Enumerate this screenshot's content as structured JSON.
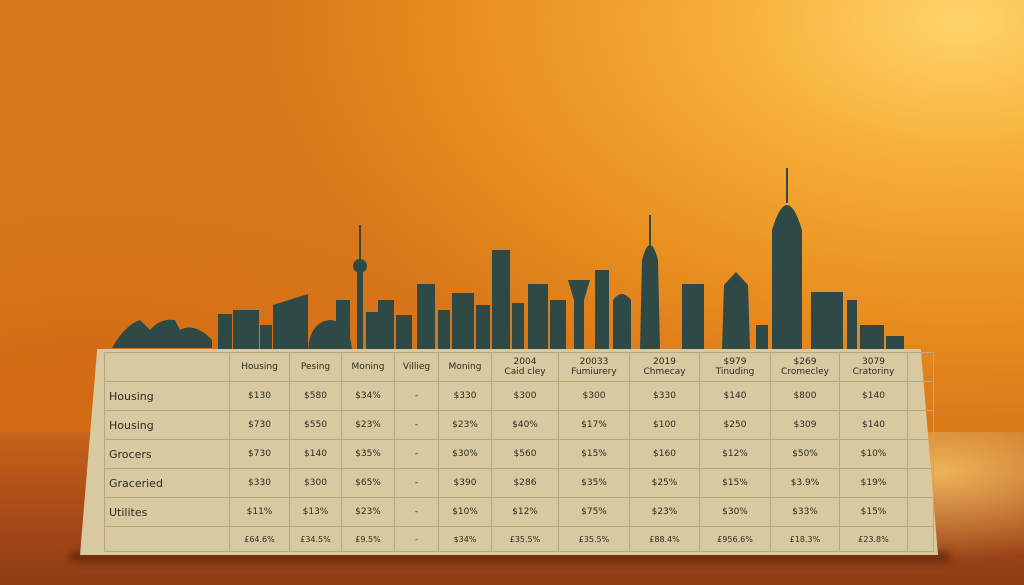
{
  "table": {
    "headers": [
      "",
      "Housing",
      "Pesing",
      "Moning",
      "Villieg",
      "Moning",
      "2004\nCaid cley",
      "20033\nFumiurery",
      "2019\nChmecay",
      "$979\nTinuding",
      "$269\nCromecley",
      "3079\nCratoriny",
      ""
    ],
    "rows": [
      {
        "label": "Housing",
        "cells": [
          "$130",
          "$580",
          "$34%",
          "-",
          "$330",
          "$300",
          "$300",
          "$330",
          "$140",
          "$800",
          "$140",
          ""
        ]
      },
      {
        "label": "Housing",
        "cells": [
          "$730",
          "$550",
          "$23%",
          "-",
          "$23%",
          "$40%",
          "$17%",
          "$100",
          "$250",
          "$309",
          "$140",
          ""
        ]
      },
      {
        "label": "Grocers",
        "cells": [
          "$730",
          "$140",
          "$35%",
          "-",
          "$30%",
          "$560",
          "$15%",
          "$160",
          "$12%",
          "$50%",
          "$10%",
          ""
        ]
      },
      {
        "label": "Graceried",
        "cells": [
          "$330",
          "$300",
          "$65%",
          "-",
          "$390",
          "$286",
          "$35%",
          "$25%",
          "$15%",
          "$3.9%",
          "$19%",
          ""
        ]
      },
      {
        "label": "Utilites",
        "cells": [
          "$11%",
          "$13%",
          "$23%",
          "-",
          "$10%",
          "$12%",
          "$75%",
          "$23%",
          "$30%",
          "$33%",
          "$15%",
          ""
        ]
      },
      {
        "label": "",
        "cells": [
          "£64.6%",
          "£34.5%",
          "£9.5%",
          "-",
          "$34%",
          "£35.5%",
          "£35.5%",
          "£88.4%",
          "£956.6%",
          "£18.3%",
          "£23.8%",
          ""
        ]
      }
    ]
  },
  "colors": {
    "skyline": "#2f4a46",
    "paper": "#d9c9a0",
    "background": "#f0a030"
  }
}
